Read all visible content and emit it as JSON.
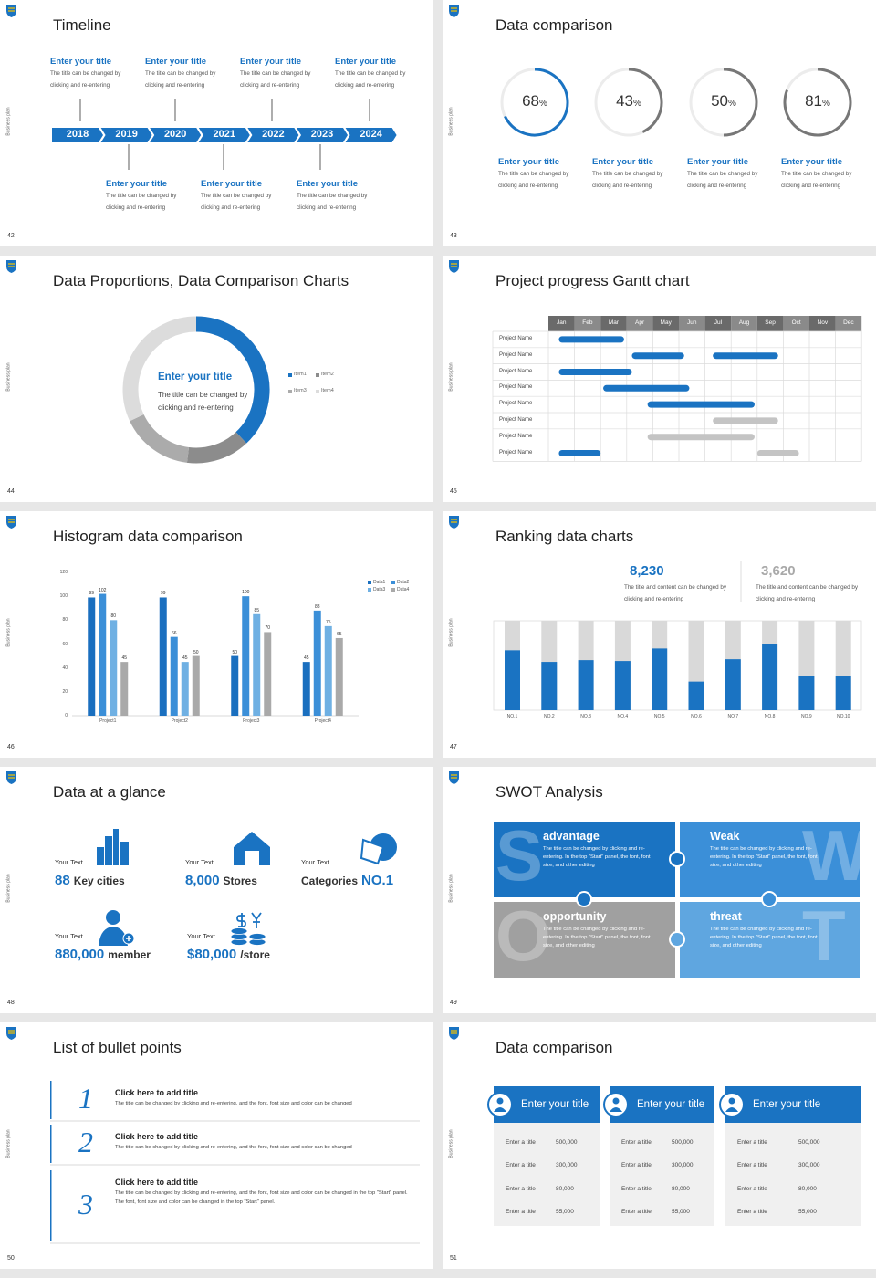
{
  "slides": [
    {
      "number": "42",
      "side_label": "Business plan",
      "title": "Timeline",
      "years": [
        "2018",
        "2019",
        "2020",
        "2021",
        "2022",
        "2023",
        "2024"
      ],
      "top_items": [
        {
          "title": "Enter your title",
          "text": "The title can be changed by clicking and re-entering"
        },
        {
          "title": "Enter your title",
          "text": "The title can be changed by clicking and re-entering"
        },
        {
          "title": "Enter your title",
          "text": "The title can be changed by clicking and re-entering"
        },
        {
          "title": "Enter your title",
          "text": "The title can be changed by clicking and re-entering"
        }
      ],
      "bottom_items": [
        {
          "title": "Enter your title",
          "text": "The title can be changed by clicking and re-entering"
        },
        {
          "title": "Enter your title",
          "text": "The title can be changed by clicking and re-entering"
        },
        {
          "title": "Enter your title",
          "text": "The title can be changed by clicking and re-entering"
        }
      ]
    },
    {
      "number": "43",
      "side_label": "Business plan",
      "title": "Data comparison",
      "items": [
        {
          "value": 68,
          "unit": "%",
          "color": "#1a73c2",
          "title": "Enter your title",
          "text": "The title can be changed by clicking and re-entering"
        },
        {
          "value": 43,
          "unit": "%",
          "color": "#777777",
          "title": "Enter your title",
          "text": "The title can be changed by clicking and re-entering"
        },
        {
          "value": 50,
          "unit": "%",
          "color": "#777777",
          "title": "Enter your title",
          "text": "The title can be changed by clicking and re-entering"
        },
        {
          "value": 81,
          "unit": "%",
          "color": "#777777",
          "title": "Enter your title",
          "text": "The title can be changed by clicking and re-entering"
        }
      ]
    },
    {
      "number": "44",
      "side_label": "Business plan",
      "title": "Data Proportions, Data Comparison Charts",
      "center_title": "Enter your title",
      "center_text": "The title can be changed by clicking and re-entering",
      "items": [
        {
          "name": "Item1",
          "value": 38,
          "color": "#1a73c2"
        },
        {
          "name": "Item2",
          "value": 14,
          "color": "#8c8c8c"
        },
        {
          "name": "Item3",
          "value": 16,
          "color": "#ababab"
        },
        {
          "name": "Item4",
          "value": 32,
          "color": "#dcdcdc"
        }
      ]
    },
    {
      "number": "45",
      "side_label": "Business plan",
      "title": "Project progress Gantt chart",
      "months": [
        "Jan",
        "Feb",
        "Mar",
        "Apr",
        "May",
        "Jun",
        "Jul",
        "Aug",
        "Sep",
        "Oct",
        "Nov",
        "Dec"
      ],
      "rows": [
        {
          "name": "Project Name",
          "bars": [
            {
              "start": 0.4,
              "end": 2.9,
              "color": "#1a73c2"
            }
          ]
        },
        {
          "name": "Project Name",
          "bars": [
            {
              "start": 3.2,
              "end": 5.2,
              "color": "#1a73c2"
            },
            {
              "start": 6.3,
              "end": 8.8,
              "color": "#1a73c2"
            }
          ]
        },
        {
          "name": "Project Name",
          "bars": [
            {
              "start": 0.4,
              "end": 3.2,
              "color": "#1a73c2"
            }
          ]
        },
        {
          "name": "Project Name",
          "bars": [
            {
              "start": 2.1,
              "end": 5.4,
              "color": "#1a73c2"
            }
          ]
        },
        {
          "name": "Project Name",
          "bars": [
            {
              "start": 3.8,
              "end": 7.9,
              "color": "#1a73c2"
            }
          ]
        },
        {
          "name": "Project Name",
          "bars": [
            {
              "start": 6.3,
              "end": 8.8,
              "color": "#c4c4c4"
            }
          ]
        },
        {
          "name": "Project Name",
          "bars": [
            {
              "start": 3.8,
              "end": 7.9,
              "color": "#c4c4c4"
            }
          ]
        },
        {
          "name": "Project Name",
          "bars": [
            {
              "start": 0.4,
              "end": 2.0,
              "color": "#1a73c2"
            },
            {
              "start": 8.0,
              "end": 9.6,
              "color": "#c4c4c4"
            }
          ]
        }
      ]
    },
    {
      "number": "46",
      "side_label": "Business plan",
      "title": "Histogram data comparison",
      "chart": {
        "categories": [
          "Project1",
          "Project2",
          "Project3",
          "Project4"
        ],
        "series": [
          {
            "name": "Data1",
            "color": "#1a6fbf",
            "values": [
              99,
              99,
              50,
              45
            ]
          },
          {
            "name": "Data2",
            "color": "#3b8fd8",
            "values": [
              102,
              66,
              100,
              88
            ]
          },
          {
            "name": "Data3",
            "color": "#6fb0e3",
            "values": [
              80,
              45,
              85,
              75
            ]
          },
          {
            "name": "Data4",
            "color": "#a9a9a9",
            "values": [
              45,
              50,
              70,
              65
            ]
          }
        ],
        "ylim": [
          0,
          120
        ],
        "yticks": [
          0,
          20,
          40,
          60,
          80,
          100,
          120
        ]
      }
    },
    {
      "number": "47",
      "side_label": "Business plan",
      "title": "Ranking data charts",
      "stats": [
        {
          "value": "8,230",
          "color": "#1a73c2",
          "text": "The title and content can be changed by clicking and re-entering"
        },
        {
          "value": "3,620",
          "color": "#a9a9a9",
          "text": "The title and content can be changed by clicking and re-entering"
        }
      ],
      "chart": {
        "categories": [
          "NO.1",
          "NO.2",
          "NO.3",
          "NO.4",
          "NO.5",
          "NO.6",
          "NO.7",
          "NO.8",
          "NO.9",
          "NO.10"
        ],
        "values": [
          67,
          54,
          56,
          55,
          69,
          32,
          57,
          74,
          38,
          38
        ],
        "ylim": [
          0,
          100
        ]
      }
    },
    {
      "number": "48",
      "side_label": "Business plan",
      "title": "Data at a glance",
      "items": [
        {
          "label": "Your Text",
          "value": "88",
          "after": "Key cities"
        },
        {
          "label": "Your Text",
          "value": "8,000",
          "after": "Stores"
        },
        {
          "label": "Your Text",
          "before": "Categories",
          "value": "NO.1"
        },
        {
          "label": "Your Text",
          "value": "880,000",
          "after": "member"
        },
        {
          "label": "Your Text",
          "value": "$80,000",
          "after": "/store"
        }
      ]
    },
    {
      "number": "49",
      "side_label": "Business plan",
      "title": "SWOT Analysis",
      "quadrants": [
        {
          "letter": "S",
          "title": "advantage",
          "color": "#1a73c2",
          "text": "The title can be changed by clicking and re-entering. In the top \"Start\" panel, the font, font size, and other editing"
        },
        {
          "letter": "W",
          "title": "Weak",
          "color": "#3b8fd8",
          "text": "The title can be changed by clicking and re-entering. In the top \"Start\" panel, the font, font size, and other editing"
        },
        {
          "letter": "O",
          "title": "opportunity",
          "color": "#a0a0a0",
          "text": "The title can be changed by clicking and re-entering. In the top \"Start\" panel, the font, font size, and other editing"
        },
        {
          "letter": "T",
          "title": "threat",
          "color": "#5fa6e0",
          "text": "The title can be changed by clicking and re-entering. In the top \"Start\" panel, the font, font size, and other editing"
        }
      ]
    },
    {
      "number": "50",
      "side_label": "Business plan",
      "title": "List of bullet points",
      "items": [
        {
          "number": "1",
          "title": "Click here to add title",
          "text": "The title can be changed by clicking and re-entering, and the font, font size and color can be changed"
        },
        {
          "number": "2",
          "title": "Click here to add title",
          "text": "The title can be changed by clicking and re-entering, and the font, font size and color can be changed"
        },
        {
          "number": "3",
          "title": "Click here to add title",
          "text": "The title can be changed by clicking and re-entering, and the font, font size and color can be changed in the top \"Start\" panel. The font, font size and color can be changed in the top \"Start\" panel."
        }
      ]
    },
    {
      "number": "51",
      "side_label": "Business plan",
      "title": "Data comparison",
      "cards": [
        {
          "title": "Enter your title",
          "rows": [
            {
              "label": "Enter a title",
              "value": "500,000"
            },
            {
              "label": "Enter a title",
              "value": "300,000"
            },
            {
              "label": "Enter a title",
              "value": "80,000"
            },
            {
              "label": "Enter a title",
              "value": "55,000"
            }
          ]
        },
        {
          "title": "Enter your title",
          "rows": [
            {
              "label": "Enter a title",
              "value": "500,000"
            },
            {
              "label": "Enter a title",
              "value": "300,000"
            },
            {
              "label": "Enter a title",
              "value": "80,000"
            },
            {
              "label": "Enter a title",
              "value": "55,000"
            }
          ]
        },
        {
          "title": "Enter your title",
          "rows": [
            {
              "label": "Enter a title",
              "value": "500,000"
            },
            {
              "label": "Enter a title",
              "value": "300,000"
            },
            {
              "label": "Enter a title",
              "value": "80,000"
            },
            {
              "label": "Enter a title",
              "value": "55,000"
            }
          ]
        }
      ]
    }
  ]
}
